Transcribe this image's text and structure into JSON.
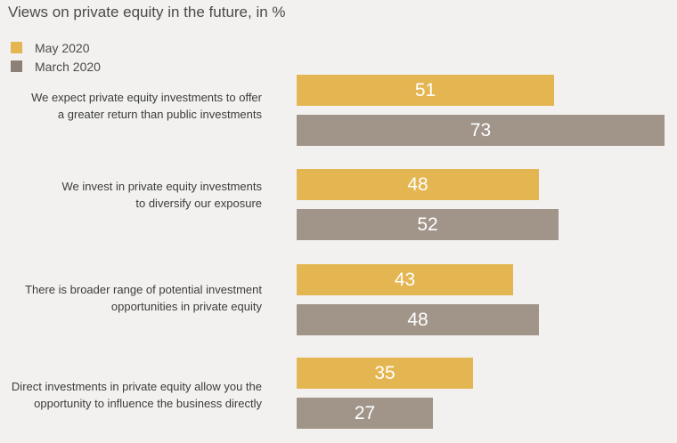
{
  "title": "Views on private equity in the future, in %",
  "chart_data": {
    "type": "bar",
    "orientation": "horizontal",
    "title": "Views on private equity in the future, in %",
    "categories": [
      "We expect private equity investments to offer\na greater return than public investments",
      "We invest in private equity investments\nto diversify our exposure",
      "There is broader range of potential investment\nopportunities in private equity",
      "Direct investments in private equity allow you the\nopportunity to influence the business directly"
    ],
    "series": [
      {
        "name": "May 2020",
        "color": "#e3b652",
        "values": [
          51,
          48,
          43,
          35
        ]
      },
      {
        "name": "March 2020",
        "color": "#a1958a",
        "values": [
          73,
          52,
          48,
          27
        ]
      }
    ],
    "data_labels": true,
    "legend": "top-left",
    "grid": false,
    "xlim": [
      0,
      73
    ]
  }
}
